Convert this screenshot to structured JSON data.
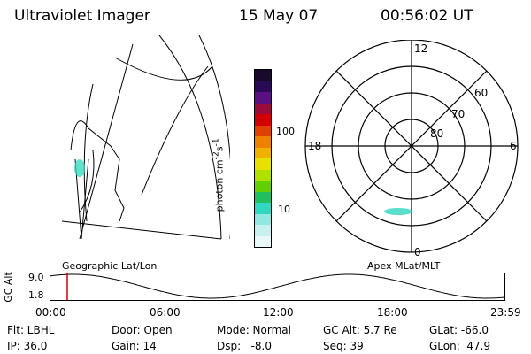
{
  "header": {
    "title": "Ultraviolet Imager",
    "date": "15 May 07",
    "time": "00:56:02 UT"
  },
  "geo_panel": {
    "caption": "Geographic Lat/Lon"
  },
  "colorbar": {
    "unit_label_parts": [
      "photon cm",
      "-2",
      "s",
      "-1"
    ],
    "tick_labels": [
      "100",
      "10"
    ],
    "colors_top_to_bottom": [
      "#1a0a2a",
      "#2a0a55",
      "#5a1080",
      "#9a0a3a",
      "#d00000",
      "#e04000",
      "#f08000",
      "#f0b000",
      "#e8e000",
      "#b0e000",
      "#60d000",
      "#20c060",
      "#30d8c0",
      "#90e8e0",
      "#c8f0f0",
      "#e8f8f8"
    ]
  },
  "polar_panel": {
    "caption": "Apex MLat/MLT",
    "mlt_labels": {
      "top": "12",
      "right": "6",
      "bottom": "0",
      "left": "18"
    },
    "mlat_labels": [
      "60",
      "70",
      "80"
    ]
  },
  "timeline": {
    "ylabel": "GC Alt",
    "yticks": [
      "9.0",
      "1.8"
    ],
    "xticks": [
      "00:00",
      "06:00",
      "12:00",
      "18:00",
      "23:59"
    ],
    "marker_time": "00:56",
    "line_color": "#000000",
    "marker_color": "#cc0000"
  },
  "info": {
    "row1": [
      "Flt: LBHL",
      "Door: Open",
      "Mode: Normal",
      "GC Alt: 5.7 Re",
      "GLat: -66.0"
    ],
    "row2": [
      "IP: 36.0",
      "Gain: 14",
      "Dsp:   -8.0",
      "Seq: 39",
      "GLon:  47.9"
    ]
  }
}
